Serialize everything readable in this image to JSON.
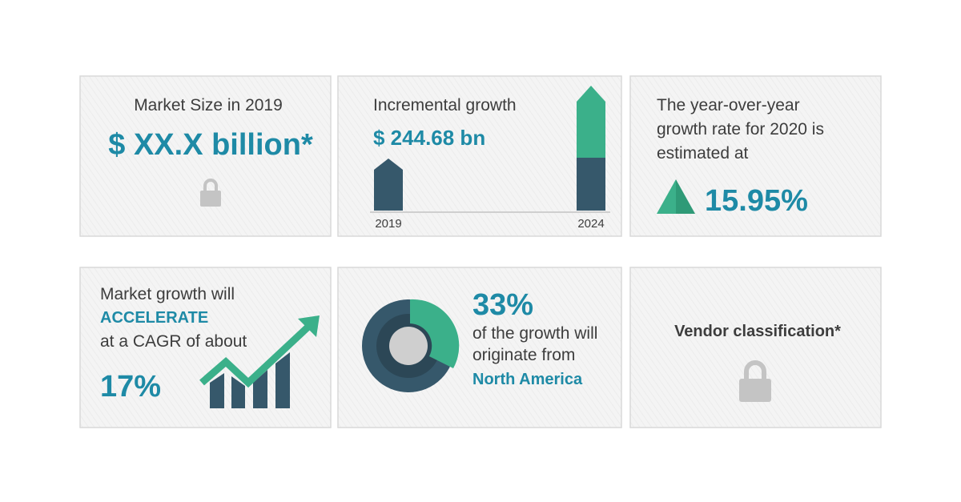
{
  "cards": [
    {
      "label": "Market Size in 2019",
      "value": "$ XX.X billion*"
    },
    {
      "label": "Incremental growth",
      "value": "$ 244.68 bn",
      "axis_labels": [
        "2019",
        "2024"
      ]
    },
    {
      "lines": [
        "The year-over-year",
        "growth rate for 2020 is",
        "estimated at"
      ],
      "value": "15.95%"
    },
    {
      "lines": [
        "Market growth will",
        "ACCELERATE",
        "at a CAGR of about"
      ],
      "value": "17%"
    },
    {
      "value": "33%",
      "lines": [
        "of the growth will",
        "originate from",
        "North America"
      ]
    },
    {
      "label": "Vendor classification*"
    }
  ]
}
